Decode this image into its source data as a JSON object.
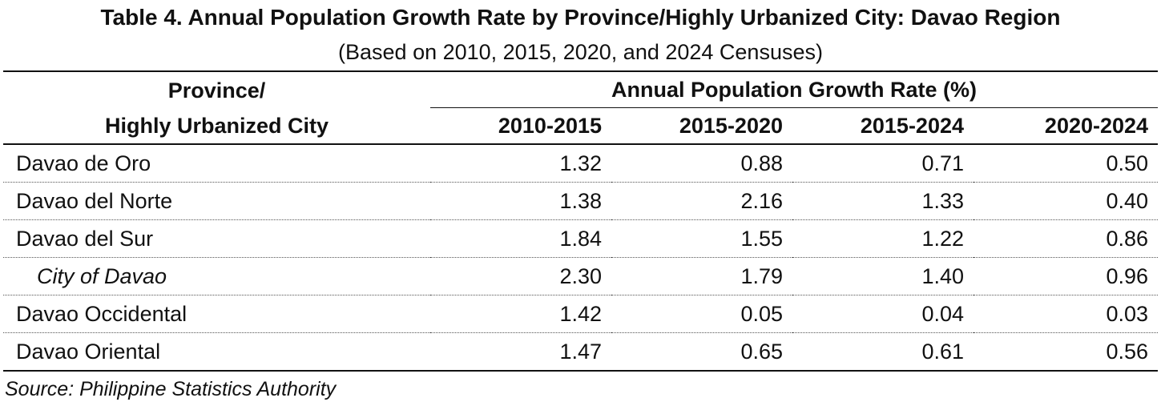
{
  "title": "Table 4. Annual Population Growth Rate by Province/Highly Urbanized City: Davao Region",
  "subtitle": "(Based on 2010, 2015, 2020, and 2024 Censuses)",
  "table": {
    "row_header_line1": "Province/",
    "row_header_line2": "Highly Urbanized City",
    "group_header": "Annual Population Growth Rate (%)",
    "columns": [
      "2010-2015",
      "2015-2020",
      "2015-2024",
      "2020-2024"
    ],
    "rows": [
      {
        "name": "Davao de Oro",
        "values": [
          "1.32",
          "0.88",
          "0.71",
          "0.50"
        ]
      },
      {
        "name": "Davao del Norte",
        "values": [
          "1.38",
          "2.16",
          "1.33",
          "0.40"
        ]
      },
      {
        "name": "Davao del Sur",
        "values": [
          "1.84",
          "1.55",
          "1.22",
          "0.86"
        ]
      },
      {
        "name": "City of Davao",
        "values": [
          "2.30",
          "1.79",
          "1.40",
          "0.96"
        ]
      },
      {
        "name": "Davao Occidental",
        "values": [
          "1.42",
          "0.05",
          "0.04",
          "0.03"
        ]
      },
      {
        "name": "Davao Oriental",
        "values": [
          "1.47",
          "0.65",
          "0.61",
          "0.56"
        ]
      }
    ]
  },
  "source": "Source: Philippine Statistics Authority"
}
